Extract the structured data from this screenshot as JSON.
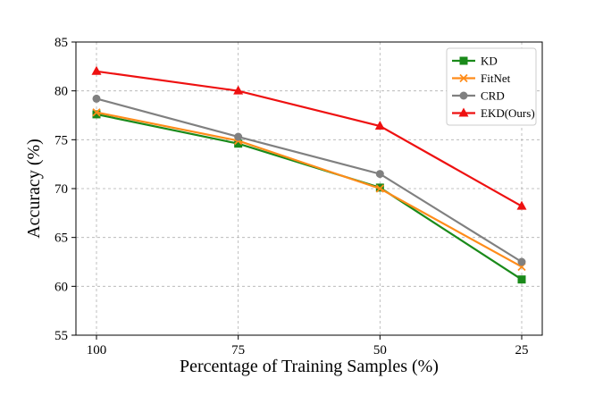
{
  "chart_data": {
    "type": "line",
    "title": "",
    "xlabel": "Percentage of Training Samples (%)",
    "ylabel": "Accuracy (%)",
    "categories": [
      "100",
      "75",
      "50",
      "25"
    ],
    "ylim": [
      55,
      85
    ],
    "yticks": [
      "55",
      "60",
      "65",
      "70",
      "75",
      "80",
      "85"
    ],
    "grid": true,
    "legend_position": "top-right",
    "series": [
      {
        "name": "KD",
        "values": [
          77.6,
          74.6,
          70.1,
          60.7
        ],
        "color": "#1a8a1a",
        "marker": "square"
      },
      {
        "name": "FitNet",
        "values": [
          77.8,
          74.9,
          70.0,
          62.0
        ],
        "color": "#ff8c1a",
        "marker": "x"
      },
      {
        "name": "CRD",
        "values": [
          79.2,
          75.3,
          71.5,
          62.5
        ],
        "color": "#808080",
        "marker": "circle"
      },
      {
        "name": "EKD(Ours)",
        "values": [
          82.0,
          80.0,
          76.4,
          68.2
        ],
        "color": "#ee1111",
        "marker": "triangle"
      }
    ]
  }
}
